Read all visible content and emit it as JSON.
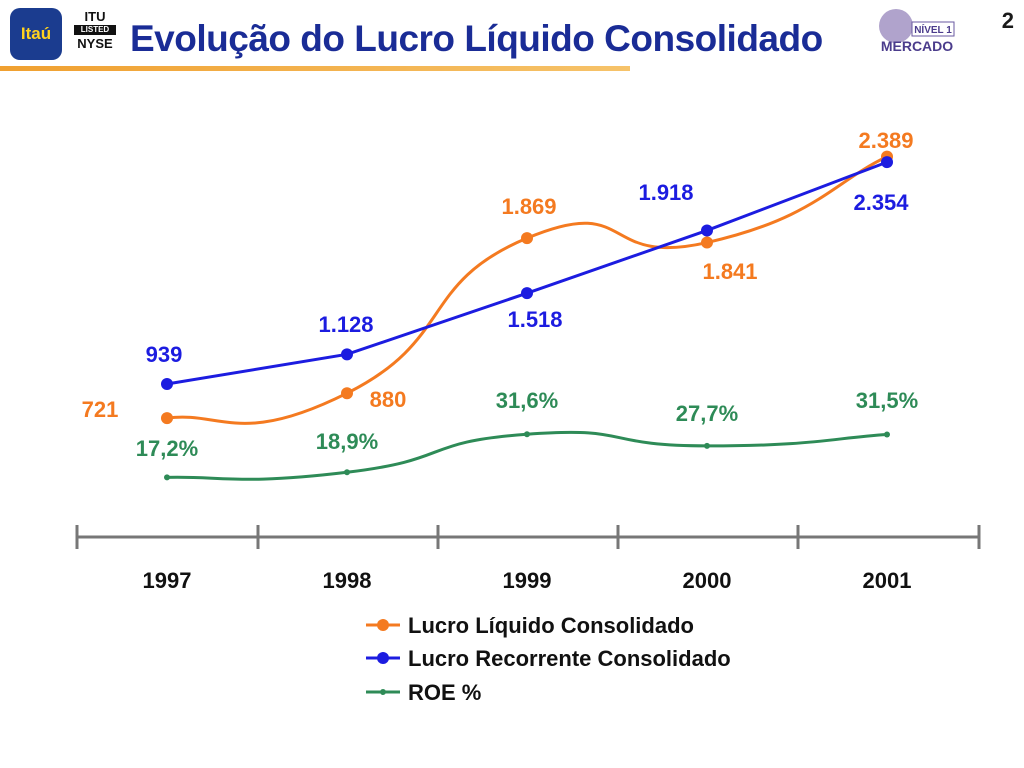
{
  "header": {
    "title": "Evolução do Lucro Líquido Consolidado",
    "page_number": "2",
    "logo_left_text": "Itaú",
    "listed_lines": [
      "ITU",
      "LISTED",
      "NYSE"
    ],
    "mercado_text": "MERCADO",
    "nivel_text": "NÍVEL 1"
  },
  "colors": {
    "title": "#1a2c96",
    "lucro_liquido": "#f47a20",
    "lucro_recorrente": "#1c1ce0",
    "roe": "#2e8b57",
    "axis": "#777777"
  },
  "chart_data": {
    "type": "line",
    "categories": [
      "1997",
      "1998",
      "1999",
      "2000",
      "2001"
    ],
    "series": [
      {
        "name": "Lucro Líquido Consolidado",
        "values": [
          721,
          880,
          1869,
          1841,
          2389
        ],
        "labels": [
          "721",
          "880",
          "1.869",
          "1.841",
          "2.389"
        ],
        "color": "#f47a20"
      },
      {
        "name": "Lucro Recorrente Consolidado",
        "values": [
          939,
          1128,
          1518,
          1918,
          2354
        ],
        "labels": [
          "939",
          "1.128",
          "1.518",
          "1.918",
          "2.354"
        ],
        "color": "#1c1ce0"
      },
      {
        "name": "ROE %",
        "values": [
          17.2,
          18.9,
          31.6,
          27.7,
          31.5
        ],
        "labels": [
          "17,2%",
          "18,9%",
          "31,6%",
          "27,7%",
          "31,5%"
        ],
        "color": "#2e8b57"
      }
    ],
    "legend_position": "bottom-center",
    "grid": false
  }
}
